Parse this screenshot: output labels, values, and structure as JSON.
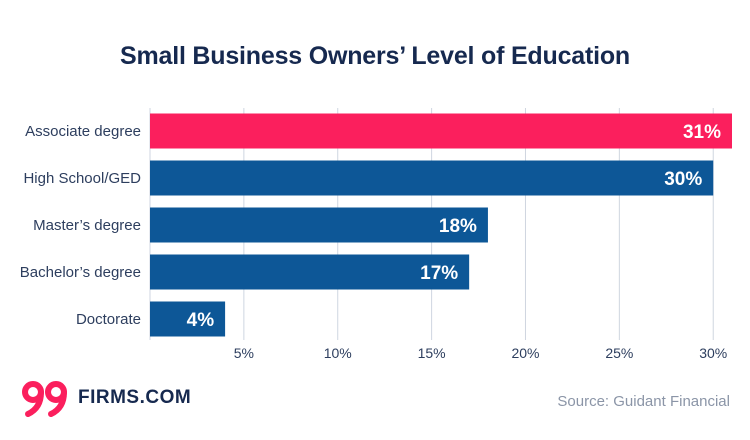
{
  "chart_data": {
    "type": "bar",
    "orientation": "horizontal",
    "title": "Small Business Owners’ Level of Education",
    "categories": [
      "Associate degree",
      "High School/GED",
      "Master’s degree",
      "Bachelor’s degree",
      "Doctorate"
    ],
    "values": [
      31,
      30,
      18,
      17,
      4
    ],
    "value_labels": [
      "31%",
      "30%",
      "18%",
      "17%",
      "4%"
    ],
    "highlight_index": 0,
    "x_ticks": [
      5,
      10,
      15,
      20,
      25,
      30
    ],
    "x_tick_labels": [
      "5%",
      "10%",
      "15%",
      "20%",
      "25%",
      "30%"
    ],
    "xlim": [
      0,
      31
    ],
    "grid": "vertical",
    "colors": {
      "bar": "#0d5797",
      "highlight": "#fb1f5d",
      "grid": "#cfd6e0"
    }
  },
  "branding": {
    "logo_number": "99",
    "logo_text": "FIRMS.COM",
    "logo_color": "#fb1f5d"
  },
  "source": "Source: Guidant Financial"
}
